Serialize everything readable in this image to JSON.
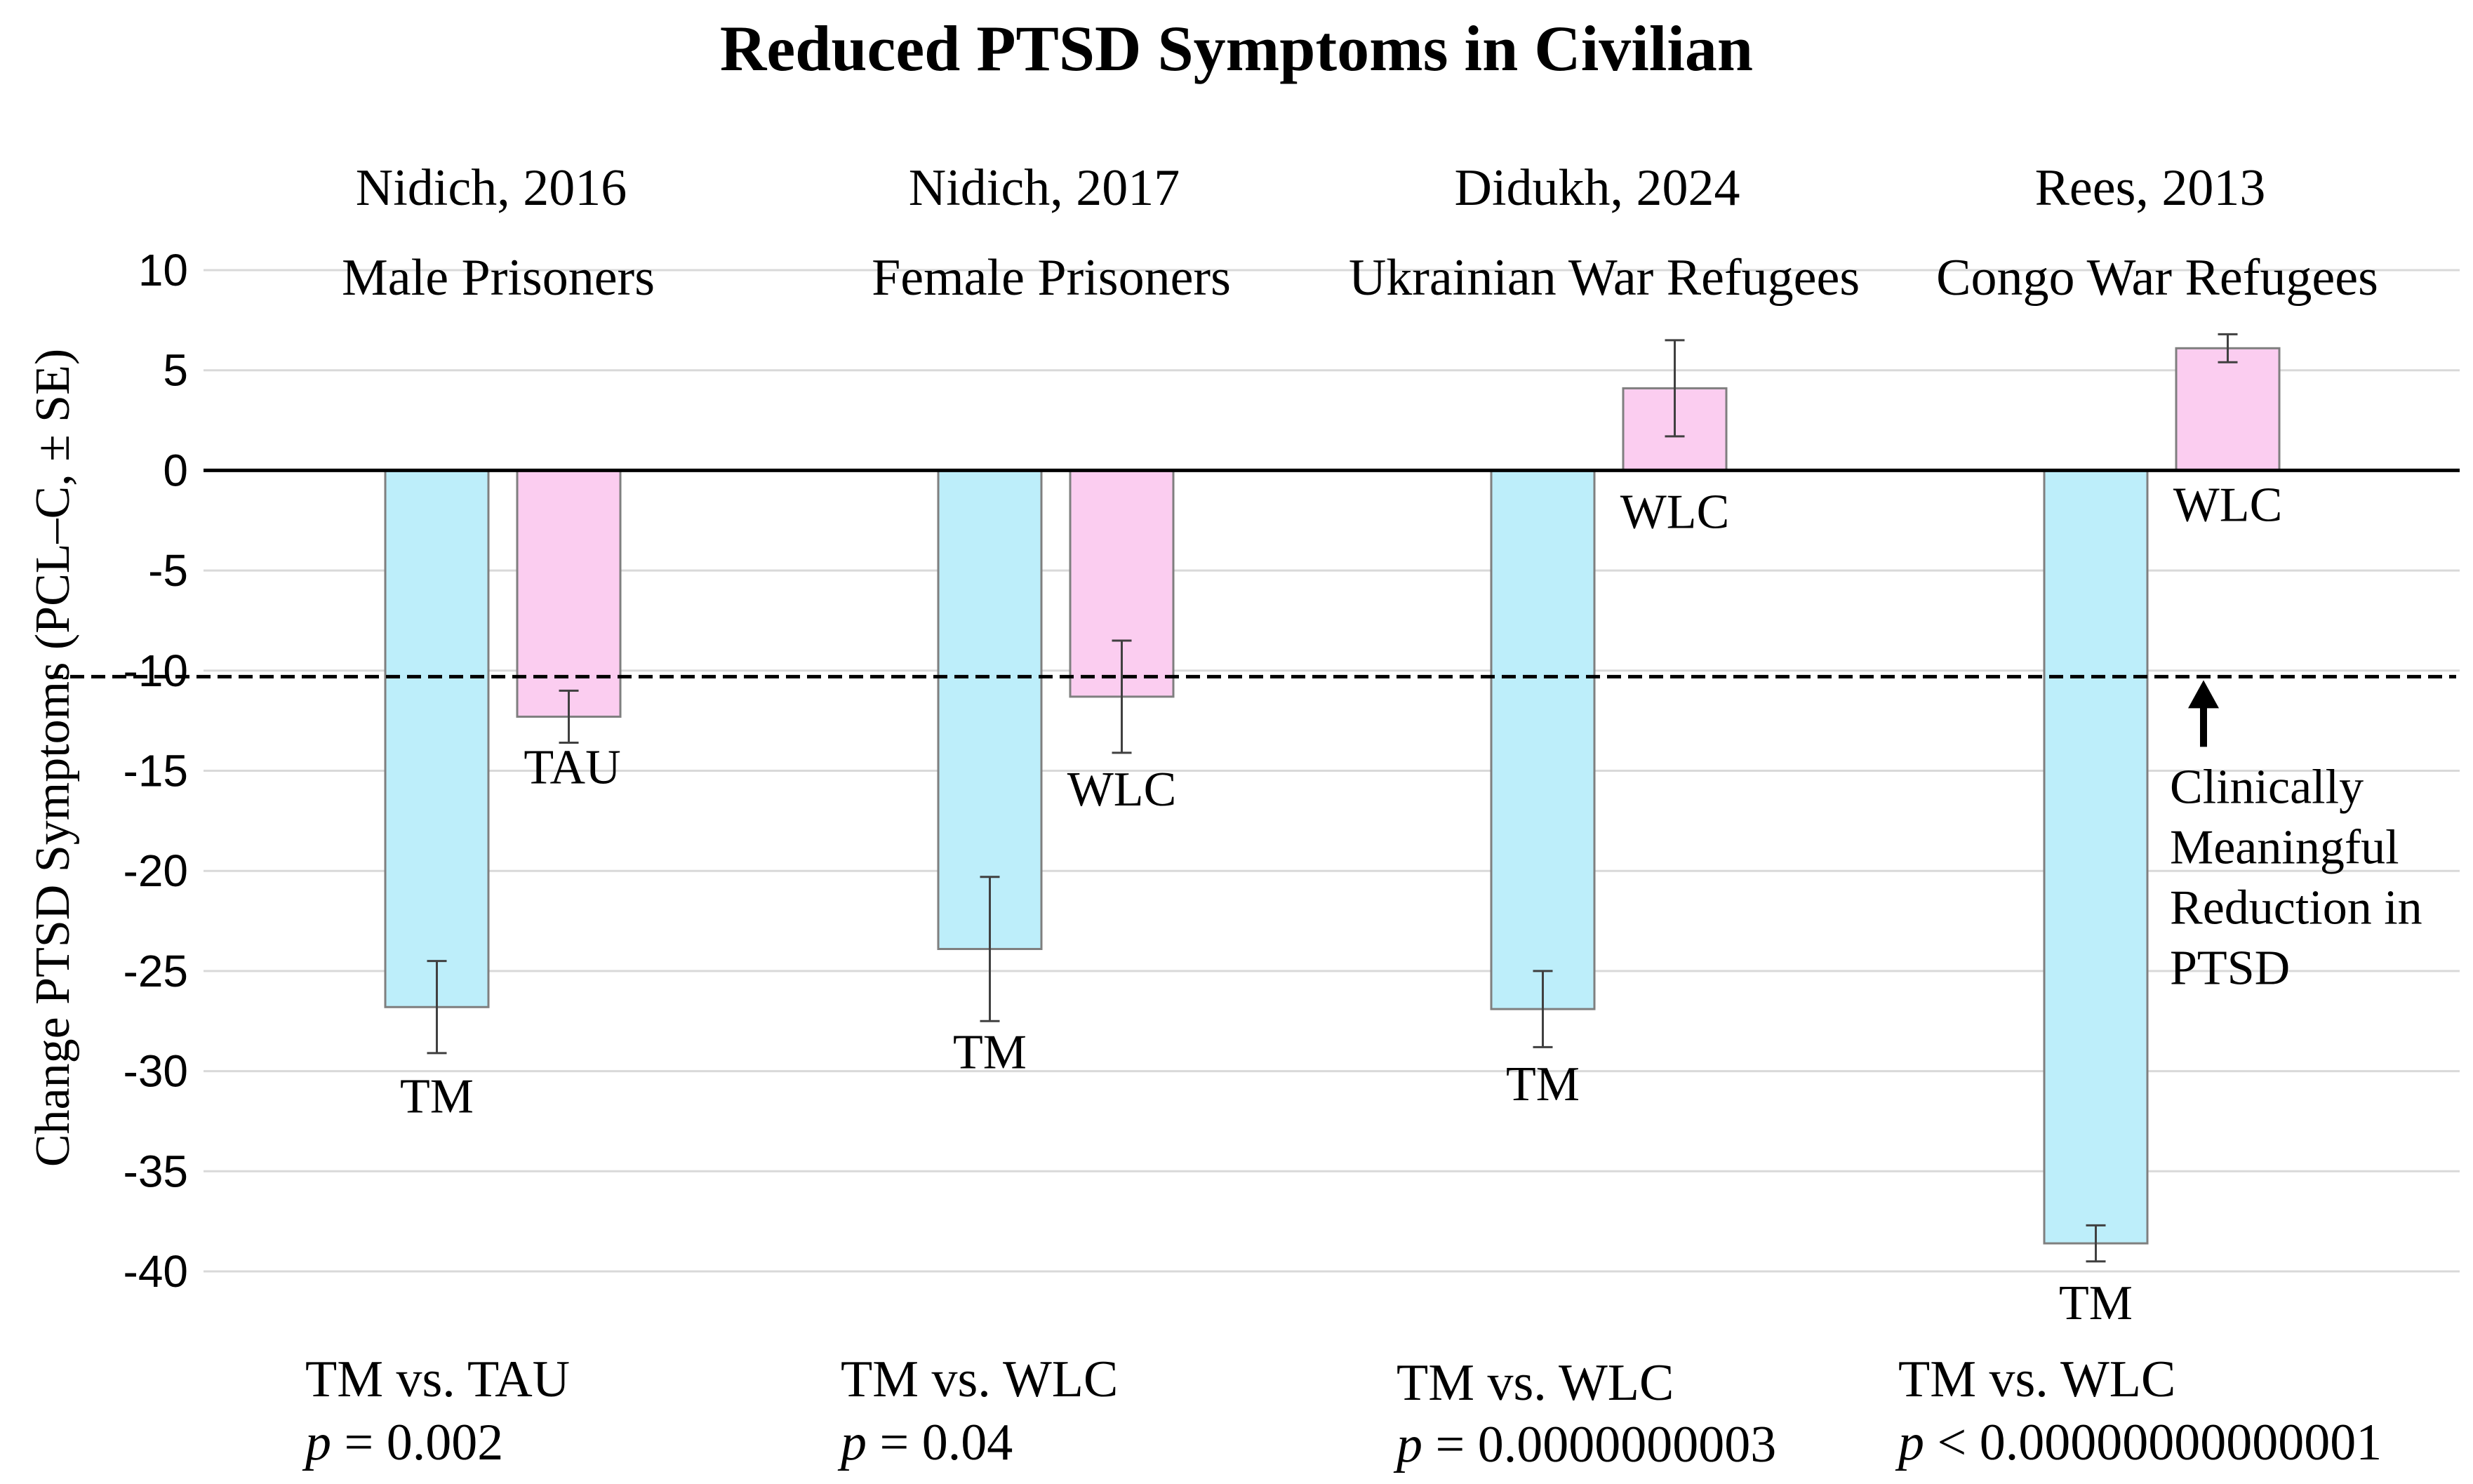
{
  "chart_data": {
    "type": "bar",
    "title": "Reduced PTSD Symptoms in Civilian",
    "ylabel": "Change PTSD Symptoms (PCL–C, ± SE)",
    "xlabel": "",
    "ylim": [
      -40,
      10
    ],
    "yticks": [
      10,
      5,
      0,
      -5,
      -10,
      -15,
      -20,
      -25,
      -30,
      -35,
      -40
    ],
    "grid": true,
    "reference_line": {
      "value": -10.3,
      "style": "dashed",
      "annotation": [
        "Clinically",
        "Meaningful",
        "Reduction in",
        "PTSD"
      ]
    },
    "series_colors": {
      "TM": "#bdeefa",
      "control": "#fbcdf0"
    },
    "groups": [
      {
        "citation": "Nidich, 2016",
        "population": "Male Prisoners",
        "bars": [
          {
            "label": "TM",
            "value": -26.8,
            "se": 2.3
          },
          {
            "label": "TAU",
            "value": -12.3,
            "se": 1.3
          }
        ],
        "comparison": "TM vs. TAU",
        "p_value": "p = 0.002"
      },
      {
        "citation": "Nidich, 2017",
        "population": "Female Prisoners",
        "bars": [
          {
            "label": "TM",
            "value": -23.9,
            "se": 3.6
          },
          {
            "label": "WLC",
            "value": -11.3,
            "se": 2.8
          }
        ],
        "comparison": "TM vs. WLC",
        "p_value": "p = 0.04"
      },
      {
        "citation": "Didukh, 2024",
        "population": "Ukrainian War Refugees",
        "bars": [
          {
            "label": "TM",
            "value": -26.9,
            "se": 1.9
          },
          {
            "label": "WLC",
            "value": 4.1,
            "se": 2.4
          }
        ],
        "comparison": "TM vs. WLC",
        "p_value": "p = 0.0000000003"
      },
      {
        "citation": "Rees, 2013",
        "population": "Congo War Refugees",
        "bars": [
          {
            "label": "TM",
            "value": -38.6,
            "se": 0.9
          },
          {
            "label": "WLC",
            "value": 6.1,
            "se": 0.7
          }
        ],
        "comparison": "TM vs. WLC",
        "p_value": "p < 0.00000000000001"
      }
    ]
  }
}
